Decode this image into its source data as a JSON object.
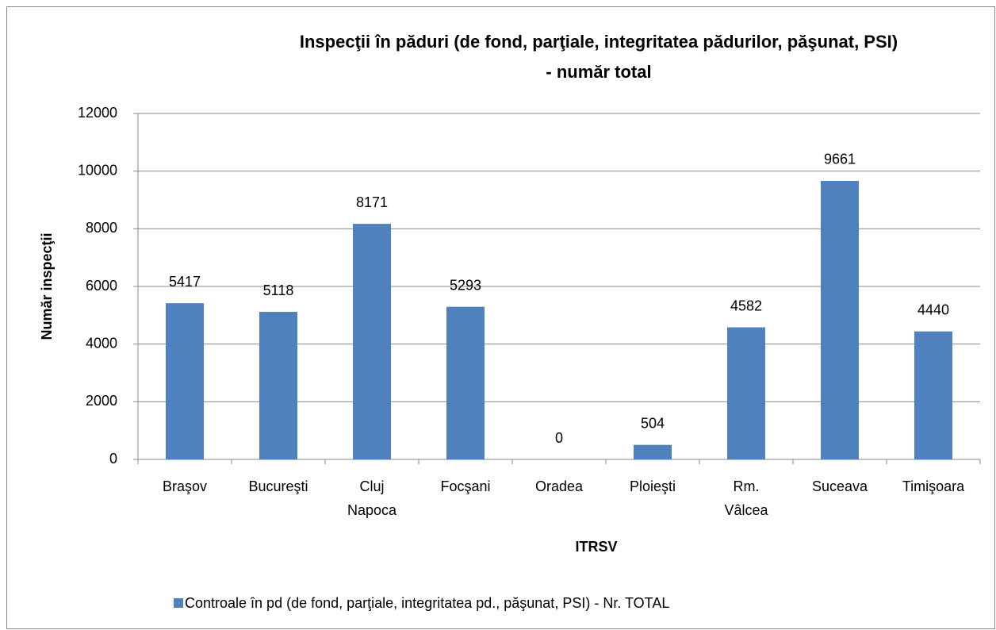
{
  "chart_data": {
    "type": "bar",
    "title": [
      "Inspecţii în păduri  (de fond, parţiale, integritatea pădurilor, păşunat, PSI)",
      "- număr total"
    ],
    "categories": [
      "Braşov",
      "Bucureşti",
      "Cluj Napoca",
      "Focşani",
      "Oradea",
      "Ploieşti",
      "Rm. Vâlcea",
      "Suceava",
      "Timişoara"
    ],
    "series": [
      {
        "name": "Controale în pd (de fond, parţiale, integritatea pd., păşunat, PSI) - Nr. TOTAL",
        "color": "#4f81bd",
        "values": [
          5417,
          5118,
          8171,
          5293,
          0,
          504,
          4582,
          9661,
          4440
        ]
      }
    ],
    "xlabel": "ITRSV",
    "ylabel": "Număr inspecţii",
    "ylim": [
      0,
      12000
    ],
    "yticks": [
      0,
      2000,
      4000,
      6000,
      8000,
      10000,
      12000
    ],
    "grid": true,
    "legend": "bottom"
  }
}
